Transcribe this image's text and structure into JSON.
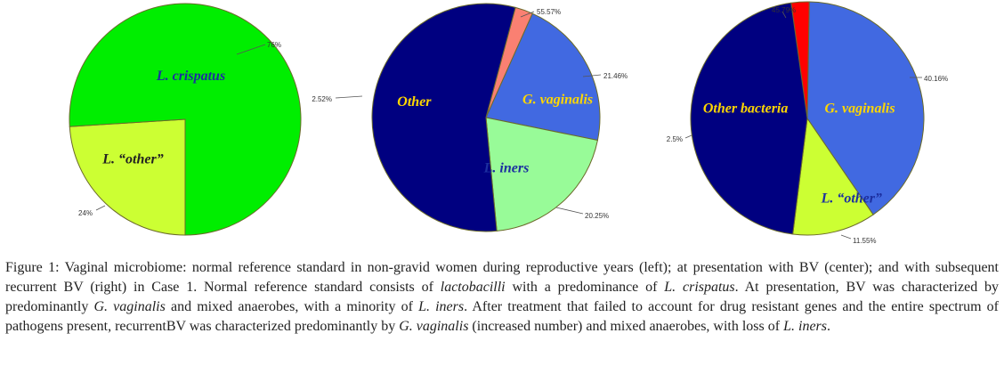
{
  "chart_data": [
    {
      "type": "pie",
      "slices": [
        {
          "label": "L. crispatus",
          "value": 76,
          "pct_label": "76%",
          "color": "#00ee00",
          "label_color": "#1c2fa0"
        },
        {
          "label": "L. “other”",
          "value": 24,
          "pct_label": "24%",
          "color": "#ccff33",
          "label_color": "#222222"
        }
      ]
    },
    {
      "type": "pie",
      "slices": [
        {
          "label": "Other",
          "value": 55.57,
          "pct_label": "55.57%",
          "color": "#000080",
          "label_color": "#ffd700"
        },
        {
          "label": "",
          "value": 2.52,
          "pct_label": "2.52%",
          "color": "#fa8072",
          "label_color": "#222222"
        },
        {
          "label": "G. vaginalis",
          "value": 21.46,
          "pct_label": "21.46%",
          "color": "#4169e1",
          "label_color": "#ffd700"
        },
        {
          "label": "L. iners",
          "value": 20.25,
          "pct_label": "20.25%",
          "color": "#98fb98",
          "label_color": "#1c2fa0"
        }
      ]
    },
    {
      "type": "pie",
      "slices": [
        {
          "label": "Other bacteria",
          "value": 45.79,
          "pct_label": "45.79%",
          "color": "#000080",
          "label_color": "#ffd700"
        },
        {
          "label": "",
          "value": 2.5,
          "pct_label": "2.5%",
          "color": "#ff0000",
          "label_color": "#222222"
        },
        {
          "label": "G. vaginalis",
          "value": 40.16,
          "pct_label": "40.16%",
          "color": "#4169e1",
          "label_color": "#ffd700"
        },
        {
          "label": "L. “other”",
          "value": 11.55,
          "pct_label": "11.55%",
          "color": "#ccff33",
          "label_color": "#1c2fa0"
        }
      ]
    }
  ],
  "caption": {
    "lead": "Figure 1:",
    "p1": " Vaginal microbiome: normal reference standard in non-gravid women during reproductive years (left); at presentation with BV (center); and with subsequent recurrent BV (right) in Case 1. Normal reference standard consists of ",
    "i1": "lactobacilli",
    "p2": " with a predominance of ",
    "i2": "L. crispatus",
    "p3": ". At presentation, BV was characterized by predominantly ",
    "i3": "G. vaginalis",
    "p4": " and mixed anaerobes, with a minority of ",
    "i4": "L. iners",
    "p5": ". After treatment that failed to account for drug resistant genes and the entire spectrum of pathogens present, recurrentBV was characterized predominantly by ",
    "i5": "G. vaginalis",
    "p6": " (increased number) and mixed anaerobes, with loss of ",
    "i6": "L. iners",
    "p7": "."
  }
}
